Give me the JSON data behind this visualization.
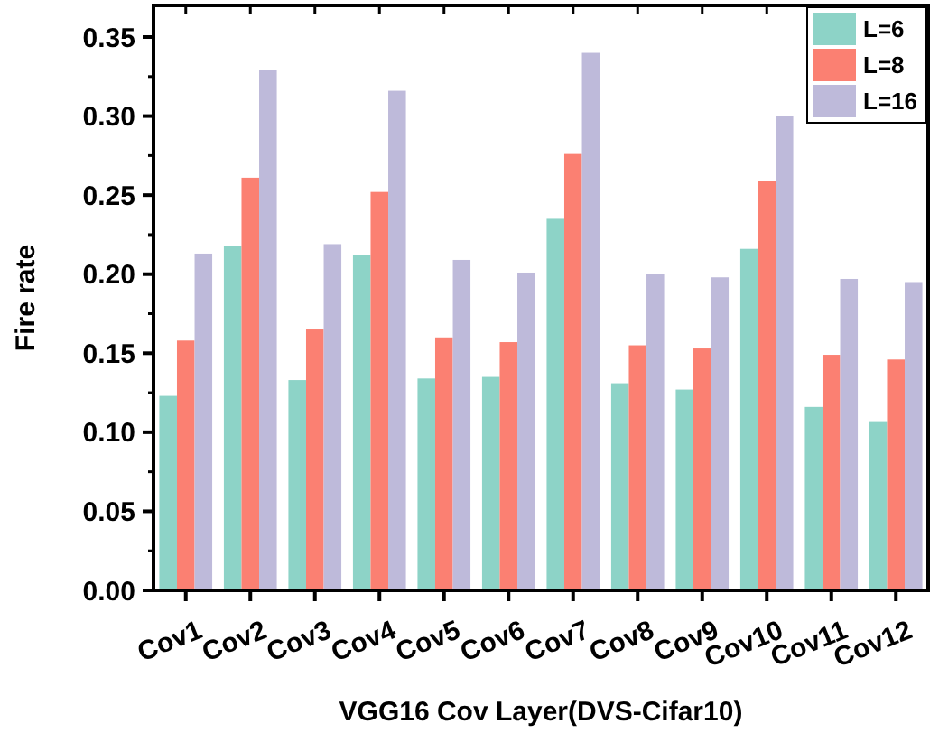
{
  "chart_data": {
    "type": "bar",
    "xlabel": "VGG16 Cov Layer(DVS-Cifar10)",
    "ylabel": "Fire rate",
    "categories": [
      "Cov1",
      "Cov2",
      "Cov3",
      "Cov4",
      "Cov5",
      "Cov6",
      "Cov7",
      "Cov8",
      "Cov9",
      "Cov10",
      "Cov11",
      "Cov12"
    ],
    "series": [
      {
        "name": "L=6",
        "color": "#8dd3c7",
        "values": [
          0.123,
          0.218,
          0.133,
          0.212,
          0.134,
          0.135,
          0.235,
          0.131,
          0.127,
          0.216,
          0.116,
          0.107
        ]
      },
      {
        "name": "L=8",
        "color": "#fb8072",
        "values": [
          0.158,
          0.261,
          0.165,
          0.252,
          0.16,
          0.157,
          0.276,
          0.155,
          0.153,
          0.259,
          0.149,
          0.146
        ]
      },
      {
        "name": "L=16",
        "color": "#bebada",
        "values": [
          0.213,
          0.329,
          0.219,
          0.316,
          0.209,
          0.201,
          0.34,
          0.2,
          0.198,
          0.3,
          0.197,
          0.195
        ]
      }
    ],
    "ylim": [
      0,
      0.37
    ],
    "yticks": [
      {
        "value": 0,
        "label": "0.00"
      },
      {
        "value": 0.05,
        "label": "0.05"
      },
      {
        "value": 0.1,
        "label": "0.10"
      },
      {
        "value": 0.15,
        "label": "0.15"
      },
      {
        "value": 0.2,
        "label": "0.20"
      },
      {
        "value": 0.25,
        "label": "0.25"
      },
      {
        "value": 0.3,
        "label": "0.30"
      },
      {
        "value": 0.35,
        "label": "0.35"
      }
    ],
    "grid": false,
    "legend": "top right"
  }
}
